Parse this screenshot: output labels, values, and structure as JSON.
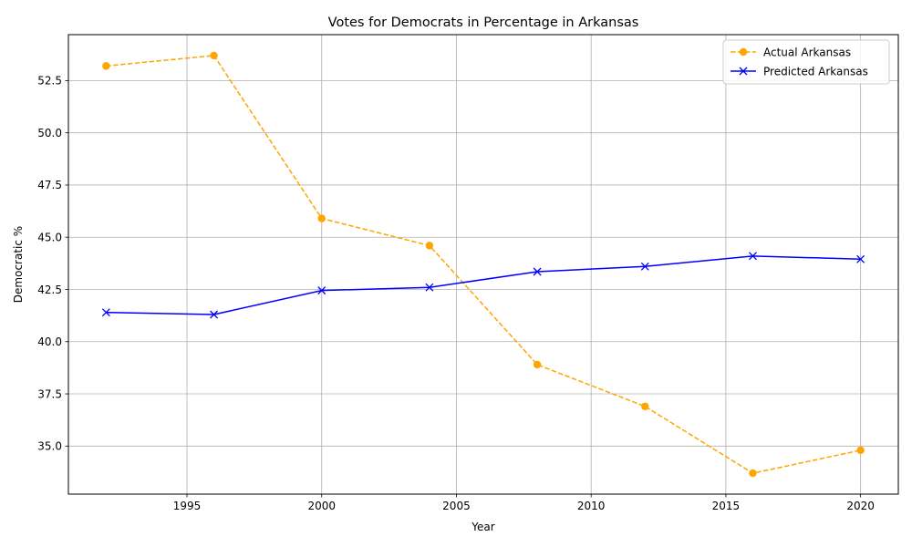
{
  "chart_data": {
    "type": "line",
    "title": "Votes for Democrats in Percentage in Arkansas",
    "xlabel": "Year",
    "ylabel": "Democratic %",
    "x": [
      1992,
      1996,
      2000,
      2004,
      2008,
      2012,
      2016,
      2020
    ],
    "series": [
      {
        "name": "Actual Arkansas",
        "values": [
          53.2,
          53.7,
          45.9,
          44.6,
          38.9,
          36.9,
          33.7,
          34.8
        ],
        "color": "#ffa500",
        "line_style": "dashed",
        "marker": "circle"
      },
      {
        "name": "Predicted Arkansas",
        "values": [
          41.4,
          41.3,
          42.45,
          42.6,
          43.35,
          43.6,
          44.1,
          43.95
        ],
        "color": "#0000ff",
        "line_style": "solid",
        "marker": "x"
      }
    ],
    "xlim": [
      1990.6,
      2021.4
    ],
    "ylim": [
      32.7,
      54.7
    ],
    "xticks": [
      1995,
      2000,
      2005,
      2010,
      2015,
      2020
    ],
    "yticks": [
      35.0,
      37.5,
      40.0,
      42.5,
      45.0,
      47.5,
      50.0,
      52.5
    ],
    "ytick_labels": [
      "35.0",
      "37.5",
      "40.0",
      "42.5",
      "45.0",
      "47.5",
      "50.0",
      "52.5"
    ],
    "grid": true,
    "legend_position": "top-right"
  }
}
